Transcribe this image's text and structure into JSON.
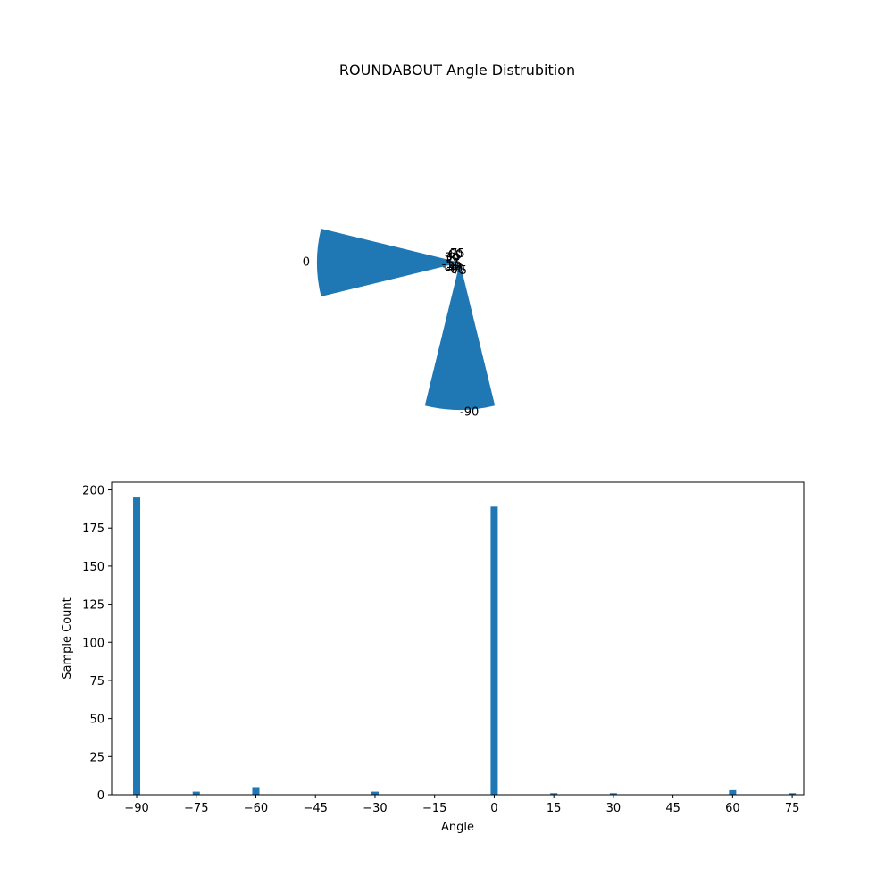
{
  "title": "ROUNDABOUT Angle Distrubition",
  "chart_data": [
    {
      "type": "bar",
      "subtype": "polar",
      "angles": [
        -90,
        -75,
        -60,
        -30,
        0,
        15,
        30,
        60,
        75
      ],
      "values": [
        195,
        2,
        5,
        2,
        189,
        1,
        1,
        3,
        1
      ],
      "radial_range": [
        0,
        195
      ],
      "theta_labels": [
        {
          "text": "-90",
          "angle": -90
        },
        {
          "text": "-75",
          "angle": -75
        },
        {
          "text": "-60",
          "angle": -60
        },
        {
          "text": "-45",
          "angle": -45
        },
        {
          "text": "-30",
          "angle": -30
        },
        {
          "text": "-15",
          "angle": -15
        },
        {
          "text": "0",
          "angle": 0
        },
        {
          "text": "15",
          "angle": 15
        },
        {
          "text": "30",
          "angle": 30
        },
        {
          "text": "45",
          "angle": 45
        },
        {
          "text": "60",
          "angle": 60
        },
        {
          "text": "75",
          "angle": 75
        }
      ],
      "color": "#1f77b4"
    },
    {
      "type": "bar",
      "x": [
        -90,
        -75,
        -60,
        -30,
        0,
        15,
        30,
        60,
        75
      ],
      "values": [
        195,
        2,
        5,
        2,
        189,
        1,
        1,
        3,
        1
      ],
      "xlabel": "Angle",
      "ylabel": "Sample Count",
      "xticks": [
        "−90",
        "−75",
        "−60",
        "−45",
        "−30",
        "−15",
        "0",
        "15",
        "30",
        "45",
        "60",
        "75"
      ],
      "xtick_values": [
        -90,
        -75,
        -60,
        -45,
        -30,
        -15,
        0,
        15,
        30,
        45,
        60,
        75
      ],
      "yticks": [
        "0",
        "25",
        "50",
        "75",
        "100",
        "125",
        "150",
        "175",
        "200"
      ],
      "ytick_values": [
        0,
        25,
        50,
        75,
        100,
        125,
        150,
        175,
        200
      ],
      "xlim": [
        -96.3,
        77.9
      ],
      "ylim": [
        0,
        205
      ],
      "bar_width": 1.8,
      "grid": false,
      "color": "#1f77b4"
    }
  ]
}
